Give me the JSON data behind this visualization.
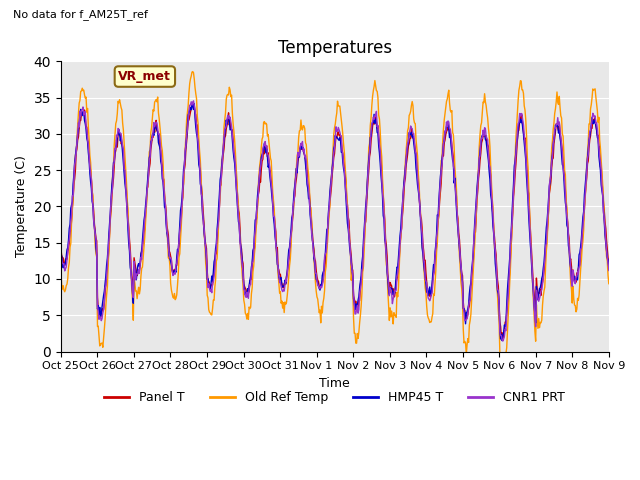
{
  "title": "Temperatures",
  "ylabel": "Temperature (C)",
  "xlabel": "Time",
  "no_data_text": "No data for f_AM25T_ref",
  "vr_met_label": "VR_met",
  "legend_entries": [
    "Panel T",
    "Old Ref Temp",
    "HMP45 T",
    "CNR1 PRT"
  ],
  "line_colors": [
    "#cc0000",
    "#ff9900",
    "#0000cc",
    "#9933cc"
  ],
  "background_color": "#e8e8e8",
  "ylim": [
    0,
    40
  ],
  "yticks": [
    0,
    5,
    10,
    15,
    20,
    25,
    30,
    35,
    40
  ],
  "xtick_labels": [
    "Oct 25",
    "Oct 26",
    "Oct 27",
    "Oct 28",
    "Oct 29",
    "Oct 30",
    "Oct 31",
    "Nov 1",
    "Nov 2",
    "Nov 3",
    "Nov 4",
    "Nov 5",
    "Nov 6",
    "Nov 7",
    "Nov 8",
    "Nov 9"
  ],
  "n_days": 15,
  "points_per_day": 48,
  "day_mins": [
    12,
    5,
    11,
    11,
    9,
    8,
    9,
    9,
    6,
    8,
    8,
    5,
    2,
    8,
    10
  ],
  "day_maxs": [
    33,
    30,
    31,
    34,
    32,
    28,
    28,
    30,
    32,
    30,
    31,
    30,
    32,
    31,
    32
  ]
}
